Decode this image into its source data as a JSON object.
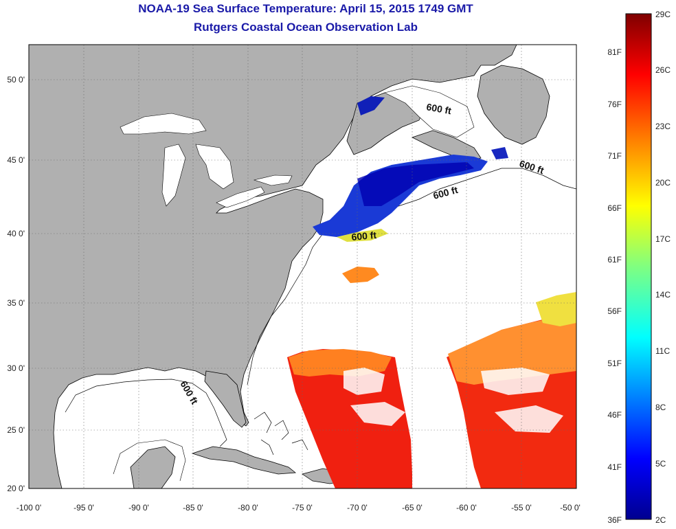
{
  "header": {
    "title": "NOAA-19 Sea Surface Temperature:  April 15, 2015 1749 GMT",
    "subtitle": "Rutgers Coastal Ocean Observation Lab"
  },
  "axes": {
    "lon_ticks": [
      "-100 0'",
      "-95 0'",
      "-90 0'",
      "-85 0'",
      "-80 0'",
      "-75 0'",
      "-70 0'",
      "-65 0'",
      "-60 0'",
      "-55 0'",
      "-50 0'"
    ],
    "lat_ticks": [
      "50 0'",
      "45 0'",
      "40 0'",
      "35 0'",
      "30 0'",
      "25 0'",
      "20 0'"
    ],
    "lon_range": [
      -100,
      -50
    ],
    "lat_range": [
      20,
      52.5
    ],
    "grid": "dotted"
  },
  "isobath_labels": [
    "600 ft",
    "600 ft",
    "600 ft",
    "600 ft",
    "600 ft"
  ],
  "colorbar": {
    "f_labels": [
      "81F",
      "76F",
      "71F",
      "66F",
      "61F",
      "56F",
      "51F",
      "46F",
      "41F",
      "36F"
    ],
    "c_labels": [
      "29C",
      "26C",
      "23C",
      "20C",
      "17C",
      "14C",
      "11C",
      "8C",
      "5C",
      "2C"
    ],
    "colors": [
      "#7f0000",
      "#ff0000",
      "#ff8000",
      "#ffff00",
      "#80ff80",
      "#00ffff",
      "#0080ff",
      "#0000ff",
      "#00008f"
    ]
  },
  "colors": {
    "land": "#b0b0b0",
    "ocean": "#ffffff",
    "title": "#1a1aa8"
  }
}
